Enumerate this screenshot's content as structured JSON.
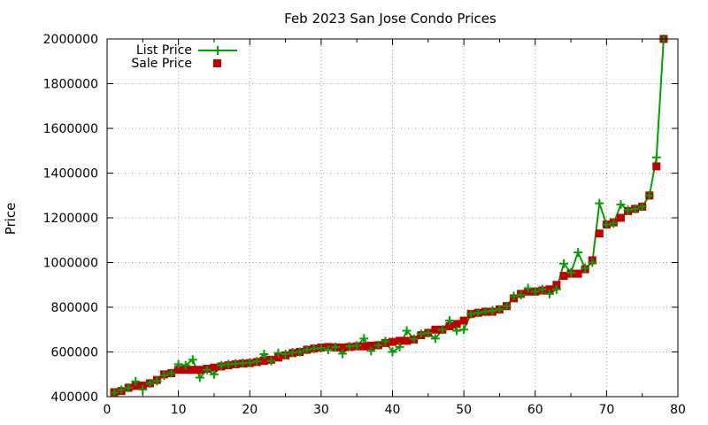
{
  "chart_data": {
    "type": "line",
    "title": "Feb 2023 San Jose Condo Prices",
    "xlabel": "",
    "ylabel": "Price",
    "xlim": [
      0,
      80
    ],
    "ylim": [
      400000,
      2000000
    ],
    "xticks": [
      0,
      10,
      20,
      30,
      40,
      50,
      60,
      70,
      80
    ],
    "yticks": [
      400000,
      600000,
      800000,
      1000000,
      1200000,
      1400000,
      1600000,
      1800000,
      2000000
    ],
    "xtick_labels": [
      "0",
      "10",
      "20",
      "30",
      "40",
      "50",
      "60",
      "70",
      "80"
    ],
    "ytick_labels": [
      "400000",
      "600000",
      "800000",
      "1000000",
      "1200000",
      "1400000",
      "1600000",
      "1800000",
      "2000000"
    ],
    "grid": true,
    "legend_position": "top-left",
    "x": [
      1,
      2,
      3,
      4,
      5,
      6,
      7,
      8,
      9,
      10,
      11,
      12,
      13,
      14,
      15,
      16,
      17,
      18,
      19,
      20,
      21,
      22,
      23,
      24,
      25,
      26,
      27,
      28,
      29,
      30,
      31,
      32,
      33,
      34,
      35,
      36,
      37,
      38,
      39,
      40,
      41,
      42,
      43,
      44,
      45,
      46,
      47,
      48,
      49,
      50,
      51,
      52,
      53,
      54,
      55,
      56,
      57,
      58,
      59,
      60,
      61,
      62,
      63,
      64,
      65,
      66,
      67,
      68,
      69,
      70,
      71,
      72,
      73,
      74,
      75,
      76,
      77,
      78
    ],
    "series": [
      {
        "name": "List Price",
        "style": "line-plus",
        "color": "#00a000",
        "values": [
          418000,
          430000,
          440000,
          468000,
          432000,
          460000,
          470000,
          495000,
          505000,
          545000,
          540000,
          565000,
          485000,
          520000,
          500000,
          540000,
          545000,
          548000,
          550000,
          552000,
          558000,
          590000,
          560000,
          595000,
          590000,
          598000,
          600000,
          610000,
          615000,
          618000,
          610000,
          622000,
          592000,
          625000,
          628000,
          660000,
          605000,
          630000,
          648000,
          600000,
          622000,
          695000,
          658000,
          680000,
          685000,
          660000,
          700000,
          740000,
          695000,
          700000,
          770000,
          775000,
          780000,
          785000,
          790000,
          805000,
          850000,
          855000,
          885000,
          870000,
          880000,
          860000,
          880000,
          995000,
          955000,
          1045000,
          975000,
          1000000,
          1265000,
          1170000,
          1175000,
          1260000,
          1235000,
          1240000,
          1250000,
          1300000,
          1470000,
          2000000
        ]
      },
      {
        "name": "Sale Price",
        "style": "filled-square",
        "color": "#c00000",
        "values": [
          420000,
          425000,
          440000,
          448000,
          450000,
          460000,
          475000,
          500000,
          505000,
          520000,
          520000,
          520000,
          520000,
          525000,
          530000,
          535000,
          540000,
          545000,
          548000,
          550000,
          555000,
          560000,
          565000,
          575000,
          585000,
          595000,
          600000,
          610000,
          615000,
          620000,
          622000,
          620000,
          620000,
          622000,
          625000,
          625000,
          628000,
          630000,
          640000,
          645000,
          650000,
          650000,
          655000,
          675000,
          685000,
          700000,
          700000,
          715000,
          725000,
          740000,
          770000,
          775000,
          780000,
          780000,
          790000,
          805000,
          840000,
          860000,
          870000,
          870000,
          875000,
          880000,
          900000,
          940000,
          950000,
          950000,
          970000,
          1010000,
          1130000,
          1170000,
          1180000,
          1200000,
          1230000,
          1240000,
          1250000,
          1300000,
          1430000,
          2000000
        ]
      }
    ]
  }
}
